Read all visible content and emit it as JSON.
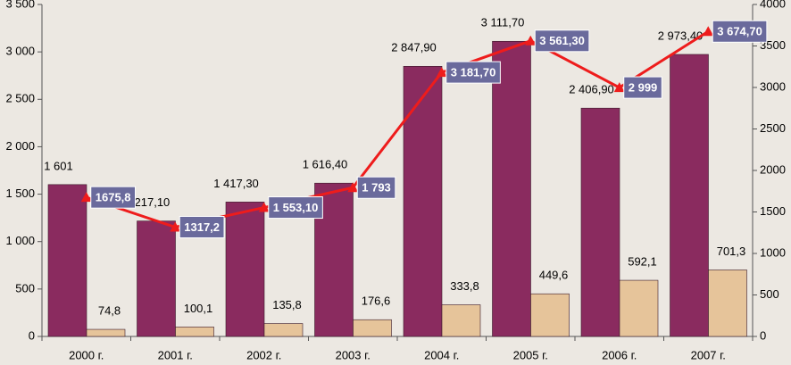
{
  "chart_data": {
    "type": "bar",
    "categories": [
      "2000 г.",
      "2001 г.",
      "2002 г.",
      "2003 г.",
      "2004 г.",
      "2005 г.",
      "2006 г.",
      "2007 г."
    ],
    "series": [
      {
        "type": "bar",
        "color": "#8a2b5f",
        "values": [
          1601,
          1217.1,
          1417.3,
          1616.4,
          2847.9,
          3111.7,
          2406.9,
          2973.4
        ],
        "value_labels": [
          "1 601",
          "1 217,10",
          "1 417,30",
          "1 616,40",
          "2 847,90",
          "3 111,70",
          "2 406,90",
          "2 973,40"
        ]
      },
      {
        "type": "bar",
        "color": "#e6c49a",
        "values": [
          74.8,
          100.1,
          135.8,
          176.6,
          333.8,
          449.6,
          592.1,
          701.3
        ],
        "value_labels": [
          "74,8",
          "100,1",
          "135,8",
          "176,6",
          "333,8",
          "449,6",
          "592,1",
          "701,3"
        ]
      },
      {
        "type": "line",
        "axis": "y2",
        "color": "#ee1c1c",
        "label_color": "#6a6a9c",
        "values": [
          1675.8,
          1317.2,
          1553.1,
          1793,
          3181.7,
          3561.3,
          2999,
          3674.7
        ],
        "value_labels": [
          "1675,8",
          "1317,2",
          "1 553,10",
          "1 793",
          "3 181,70",
          "3 561,30",
          "2 999",
          "3 674,70"
        ]
      }
    ],
    "ylim": [
      0,
      3500
    ],
    "yticks": [
      0,
      500,
      {
        "value": 1000,
        "label": "1 000"
      },
      {
        "value": 1500,
        "label": "1 500"
      },
      {
        "value": 2000,
        "label": "2 000"
      },
      {
        "value": 2500,
        "label": "2 500"
      },
      {
        "value": 3000,
        "label": "3 000"
      },
      {
        "value": 3500,
        "label": "3 500"
      }
    ],
    "y2lim": [
      0,
      4000
    ],
    "y2ticks": [
      0,
      500,
      1000,
      1500,
      2000,
      2500,
      3000,
      3500,
      4000
    ]
  }
}
